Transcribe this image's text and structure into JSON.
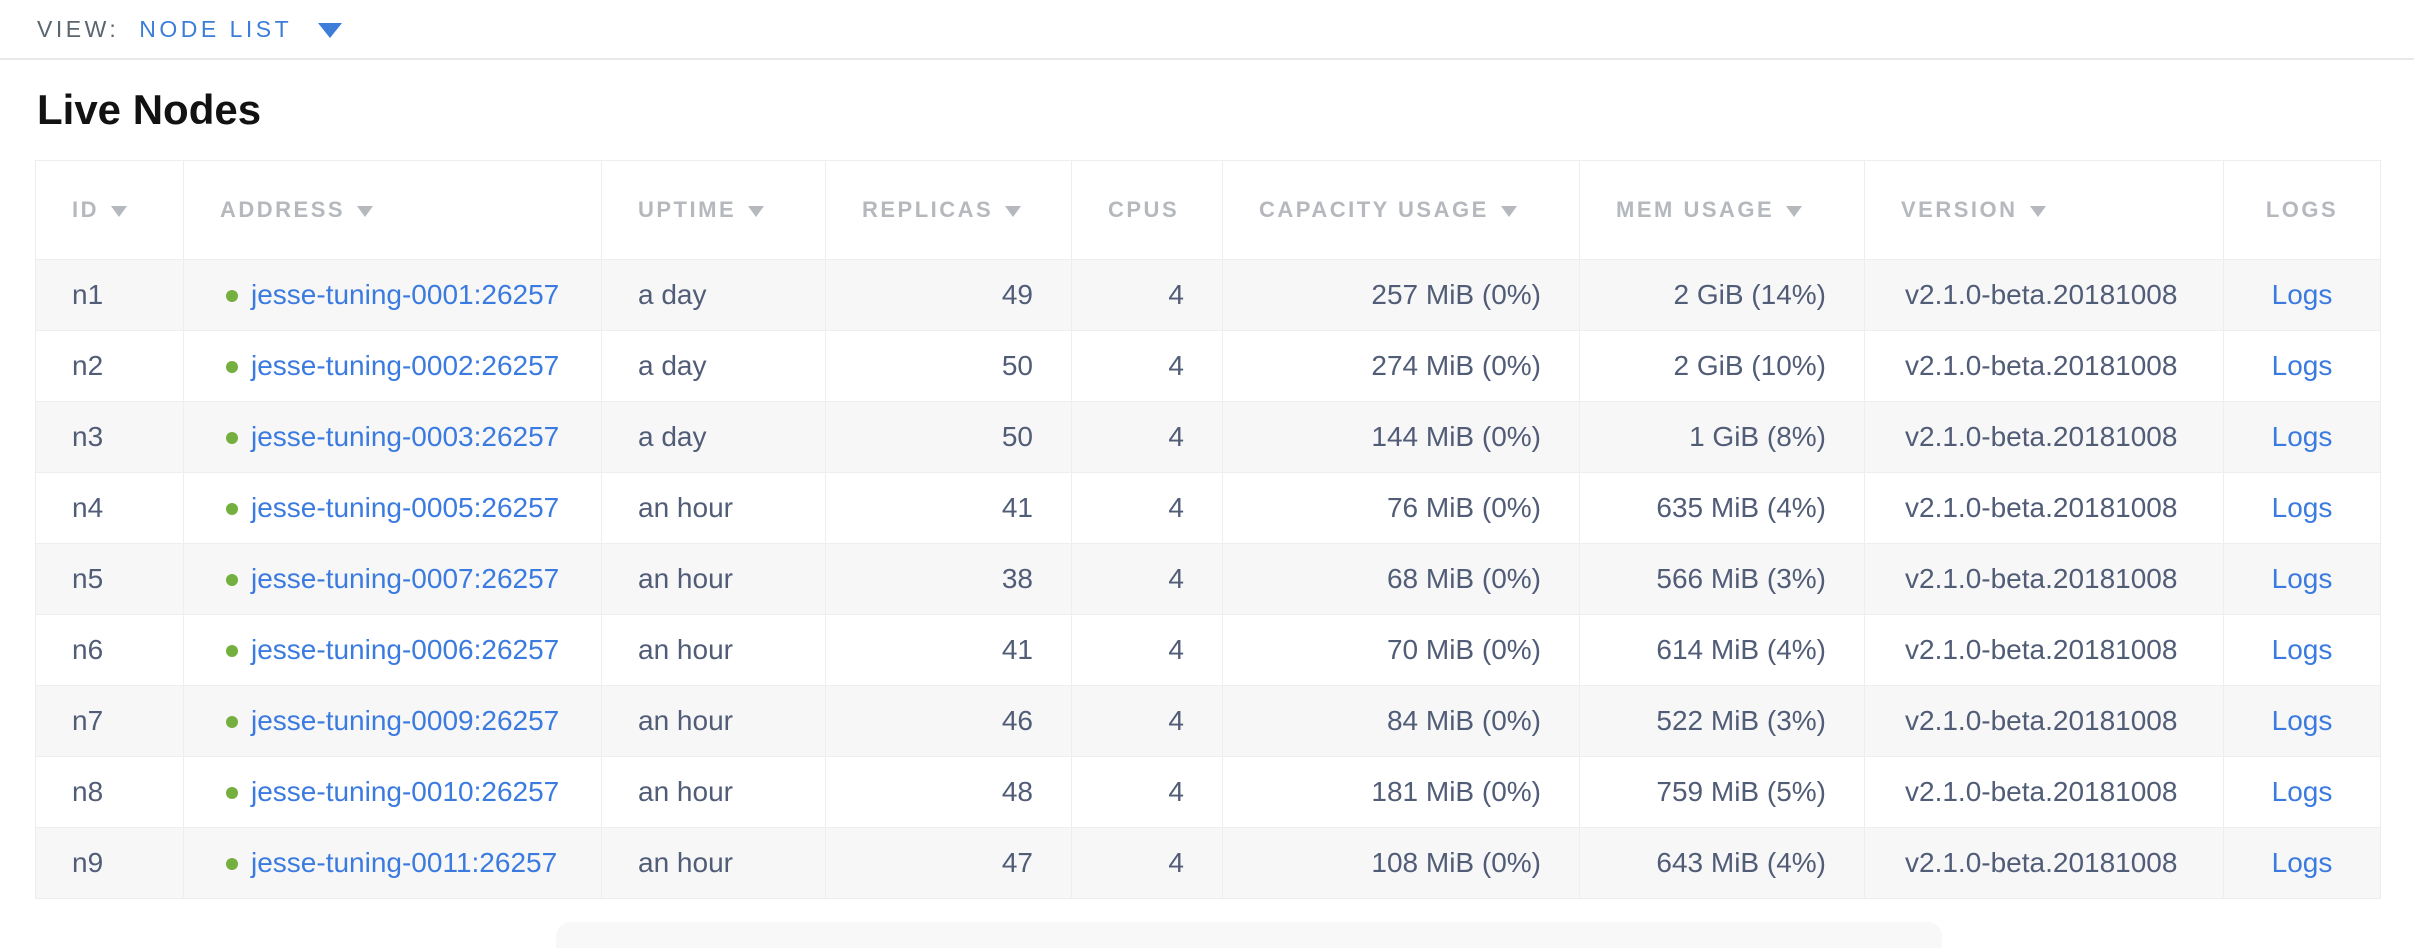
{
  "view_bar": {
    "label": "VIEW:",
    "selected_view": "NODE LIST"
  },
  "section_title": "Live Nodes",
  "colors": {
    "accent_blue": "#3b7dd8",
    "link_blue": "#3b7be0",
    "status_green": "#74af3f",
    "header_text_gray": "#b5b8bd",
    "row_text_slate": "#515c77",
    "row_stripe": "#f7f7f8",
    "grid_border": "#eeeeee"
  },
  "table": {
    "columns": [
      {
        "key": "id",
        "label": "ID",
        "sortable": true
      },
      {
        "key": "address",
        "label": "ADDRESS",
        "sortable": true
      },
      {
        "key": "uptime",
        "label": "UPTIME",
        "sortable": true
      },
      {
        "key": "replicas",
        "label": "REPLICAS",
        "sortable": true
      },
      {
        "key": "cpus",
        "label": "CPUS",
        "sortable": false
      },
      {
        "key": "capacity",
        "label": "CAPACITY USAGE",
        "sortable": true
      },
      {
        "key": "mem",
        "label": "MEM USAGE",
        "sortable": true
      },
      {
        "key": "version",
        "label": "VERSION",
        "sortable": true
      },
      {
        "key": "logs",
        "label": "LOGS",
        "sortable": false
      }
    ],
    "rows": [
      {
        "id": "n1",
        "address": "jesse-tuning-0001:26257",
        "uptime": "a day",
        "replicas": "49",
        "cpus": "4",
        "capacity": "257 MiB (0%)",
        "mem": "2 GiB (14%)",
        "version": "v2.1.0-beta.20181008",
        "logs": "Logs"
      },
      {
        "id": "n2",
        "address": "jesse-tuning-0002:26257",
        "uptime": "a day",
        "replicas": "50",
        "cpus": "4",
        "capacity": "274 MiB (0%)",
        "mem": "2 GiB (10%)",
        "version": "v2.1.0-beta.20181008",
        "logs": "Logs"
      },
      {
        "id": "n3",
        "address": "jesse-tuning-0003:26257",
        "uptime": "a day",
        "replicas": "50",
        "cpus": "4",
        "capacity": "144 MiB (0%)",
        "mem": "1 GiB (8%)",
        "version": "v2.1.0-beta.20181008",
        "logs": "Logs"
      },
      {
        "id": "n4",
        "address": "jesse-tuning-0005:26257",
        "uptime": "an hour",
        "replicas": "41",
        "cpus": "4",
        "capacity": "76 MiB (0%)",
        "mem": "635 MiB (4%)",
        "version": "v2.1.0-beta.20181008",
        "logs": "Logs"
      },
      {
        "id": "n5",
        "address": "jesse-tuning-0007:26257",
        "uptime": "an hour",
        "replicas": "38",
        "cpus": "4",
        "capacity": "68 MiB (0%)",
        "mem": "566 MiB (3%)",
        "version": "v2.1.0-beta.20181008",
        "logs": "Logs"
      },
      {
        "id": "n6",
        "address": "jesse-tuning-0006:26257",
        "uptime": "an hour",
        "replicas": "41",
        "cpus": "4",
        "capacity": "70 MiB (0%)",
        "mem": "614 MiB (4%)",
        "version": "v2.1.0-beta.20181008",
        "logs": "Logs"
      },
      {
        "id": "n7",
        "address": "jesse-tuning-0009:26257",
        "uptime": "an hour",
        "replicas": "46",
        "cpus": "4",
        "capacity": "84 MiB (0%)",
        "mem": "522 MiB (3%)",
        "version": "v2.1.0-beta.20181008",
        "logs": "Logs"
      },
      {
        "id": "n8",
        "address": "jesse-tuning-0010:26257",
        "uptime": "an hour",
        "replicas": "48",
        "cpus": "4",
        "capacity": "181 MiB (0%)",
        "mem": "759 MiB (5%)",
        "version": "v2.1.0-beta.20181008",
        "logs": "Logs"
      },
      {
        "id": "n9",
        "address": "jesse-tuning-0011:26257",
        "uptime": "an hour",
        "replicas": "47",
        "cpus": "4",
        "capacity": "108 MiB (0%)",
        "mem": "643 MiB (4%)",
        "version": "v2.1.0-beta.20181008",
        "logs": "Logs"
      }
    ]
  }
}
